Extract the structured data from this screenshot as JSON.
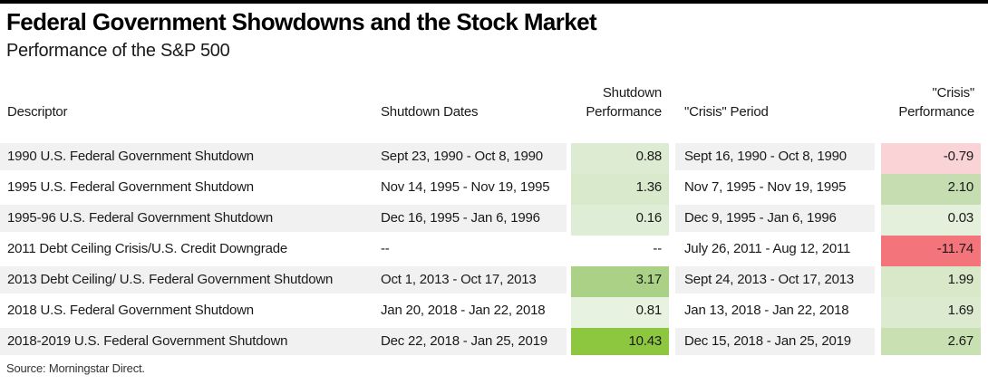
{
  "page": {
    "title": "Federal Government Showdowns and the Stock Market",
    "subtitle": "Performance of the S&P 500",
    "source": "Source: Morningstar Direct."
  },
  "colors": {
    "top_bar": "#000000",
    "row_stripe": "#f1f1f1",
    "positive_strong": "#8dc63f",
    "negative_strong": "#f4747b"
  },
  "table": {
    "headers": {
      "descriptor": "Descriptor",
      "shutdown_dates": "Shutdown Dates",
      "shutdown_performance_line1": "Shutdown",
      "shutdown_performance_line2": "Performance",
      "crisis_period": "\"Crisis\" Period",
      "crisis_performance_line1": "\"Crisis\"",
      "crisis_performance_line2": "Performance"
    },
    "rows": [
      {
        "descriptor": "1990 U.S. Federal Government Shutdown",
        "shutdown_dates": "Sept 23, 1990 - Oct 8, 1990",
        "shutdown_performance": "0.88",
        "shutdown_performance_bg": "#dcebd1",
        "crisis_period": "Sept 16, 1990 - Oct 8, 1990",
        "crisis_performance": "-0.79",
        "crisis_performance_bg": "#f9d3d5",
        "striped": true
      },
      {
        "descriptor": "1995 U.S. Federal Government Shutdown",
        "shutdown_dates": "Nov 14, 1995 - Nov 19, 1995",
        "shutdown_performance": "1.36",
        "shutdown_performance_bg": "#d8e9cc",
        "crisis_period": "Nov 7, 1995 - Nov 19, 1995",
        "crisis_performance": "2.10",
        "crisis_performance_bg": "#c5ddb0",
        "striped": false
      },
      {
        "descriptor": "1995-96 U.S. Federal Government Shutdown",
        "shutdown_dates": "Dec 16, 1995 - Jan 6, 1996",
        "shutdown_performance": "0.16",
        "shutdown_performance_bg": "#deedd5",
        "crisis_period": "Dec 9, 1995 - Jan 6, 1996",
        "crisis_performance": "0.03",
        "crisis_performance_bg": "#e4efdc",
        "striped": true
      },
      {
        "descriptor": "2011 Debt Ceiling Crisis/U.S. Credit Downgrade",
        "shutdown_dates": "--",
        "shutdown_performance": "--",
        "shutdown_performance_bg": "#ffffff",
        "crisis_period": "July 26, 2011 - Aug 12, 2011",
        "crisis_performance": "-11.74",
        "crisis_performance_bg": "#f4747b",
        "striped": false
      },
      {
        "descriptor": "2013 Debt Ceiling/ U.S. Federal Government Shutdown",
        "shutdown_dates": "Oct 1, 2013 - Oct 17, 2013",
        "shutdown_performance": "3.17",
        "shutdown_performance_bg": "#aad185",
        "crisis_period": "Sept 24, 2013 - Oct 17, 2013",
        "crisis_performance": "1.99",
        "crisis_performance_bg": "#d8e8c9",
        "striped": true
      },
      {
        "descriptor": "2018 U.S. Federal Government Shutdown",
        "shutdown_dates": "Jan 20, 2018 - Jan 22, 2018",
        "shutdown_performance": "0.81",
        "shutdown_performance_bg": "#e8f2e0",
        "crisis_period": "Jan 13, 2018 - Jan 22, 2018",
        "crisis_performance": "1.69",
        "crisis_performance_bg": "#dcead0",
        "striped": false
      },
      {
        "descriptor": "2018-2019 U.S. Federal Government Shutdown",
        "shutdown_dates": "Dec 22, 2018 - Jan 25, 2019",
        "shutdown_performance": "10.43",
        "shutdown_performance_bg": "#8dc63f",
        "crisis_period": "Dec 15, 2018 - Jan 25, 2019",
        "crisis_performance": "2.67",
        "crisis_performance_bg": "#c8e0b2",
        "striped": true
      }
    ]
  },
  "chart_data": {
    "type": "table",
    "title": "Federal Government Showdowns and the Stock Market",
    "subtitle": "Performance of the S&P 500",
    "columns": [
      "Descriptor",
      "Shutdown Dates",
      "Shutdown Performance",
      "\"Crisis\" Period",
      "\"Crisis\" Performance"
    ],
    "rows": [
      [
        "1990 U.S. Federal Government Shutdown",
        "Sept 23, 1990 - Oct 8, 1990",
        0.88,
        "Sept 16, 1990 - Oct 8, 1990",
        -0.79
      ],
      [
        "1995 U.S. Federal Government Shutdown",
        "Nov 14, 1995 - Nov 19, 1995",
        1.36,
        "Nov 7, 1995 - Nov 19, 1995",
        2.1
      ],
      [
        "1995-96 U.S. Federal Government Shutdown",
        "Dec 16, 1995 - Jan 6, 1996",
        0.16,
        "Dec 9, 1995 - Jan 6, 1996",
        0.03
      ],
      [
        "2011 Debt Ceiling Crisis/U.S. Credit Downgrade",
        null,
        null,
        "July 26, 2011 - Aug 12, 2011",
        -11.74
      ],
      [
        "2013 Debt Ceiling/ U.S. Federal Government Shutdown",
        "Oct 1, 2013 - Oct 17, 2013",
        3.17,
        "Sept 24, 2013 - Oct 17, 2013",
        1.99
      ],
      [
        "2018 U.S. Federal Government Shutdown",
        "Jan 20, 2018 - Jan 22, 2018",
        0.81,
        "Jan 13, 2018 - Jan 22, 2018",
        1.69
      ],
      [
        "2018-2019 U.S. Federal Government Shutdown",
        "Dec 22, 2018 - Jan 25, 2019",
        10.43,
        "Dec 15, 2018 - Jan 25, 2019",
        2.67
      ]
    ],
    "source": "Source: Morningstar Direct.",
    "cell_shading": "performance columns shaded green (positive) to red (negative), intensity scaled to magnitude"
  }
}
